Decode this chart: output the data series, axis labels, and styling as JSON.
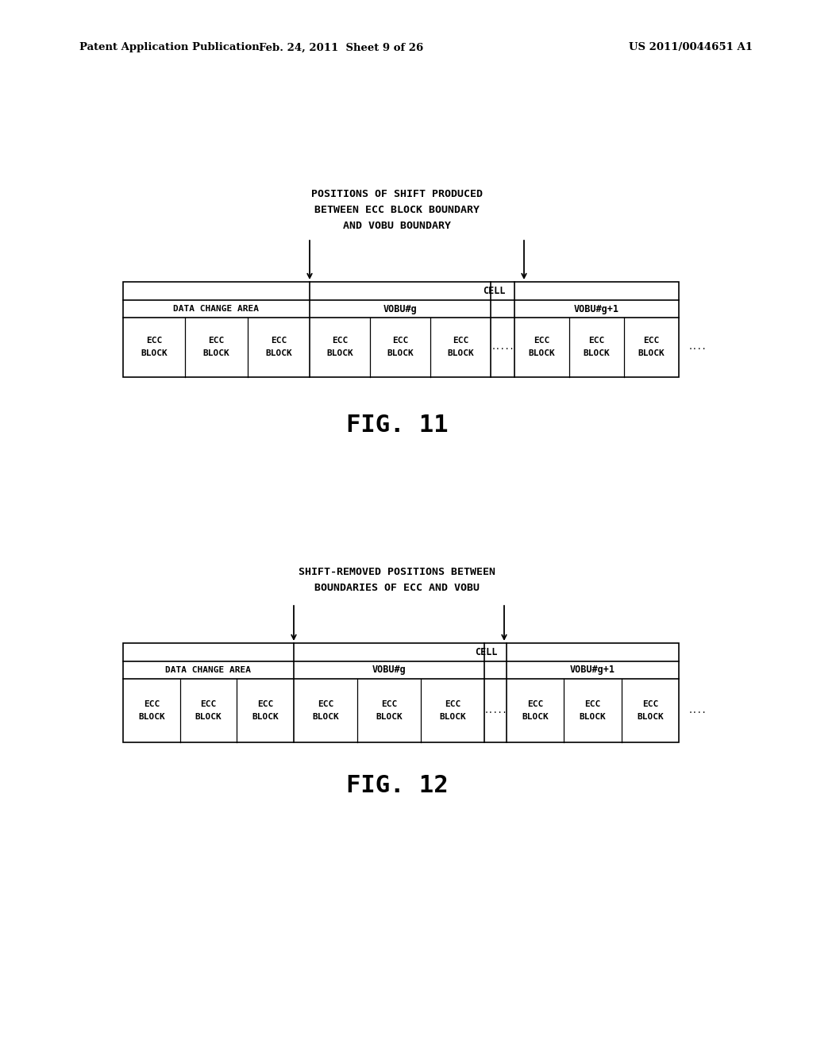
{
  "bg_color": "#ffffff",
  "text_color": "#000000",
  "header_left": "Patent Application Publication",
  "header_mid": "Feb. 24, 2011  Sheet 9 of 26",
  "header_right": "US 2011/0044651 A1",
  "fig11_title_line1": "POSITIONS OF SHIFT PRODUCED",
  "fig11_title_line2": "BETWEEN ECC BLOCK BOUNDARY",
  "fig11_title_line3": "AND VOBU BOUNDARY",
  "fig12_title_line1": "SHIFT-REMOVED POSITIONS BETWEEN",
  "fig12_title_line2": "BOUNDARIES OF ECC AND VOBU",
  "fig11_label": "FIG. 11",
  "fig12_label": "FIG. 12",
  "cell_label": "CELL",
  "dca_label": "DATA CHANGE AREA",
  "vobu_g_label": "VOBU#g",
  "vobu_gp1_label": "VOBU#g+1",
  "ecc_label": "ECC",
  "block_label": "BLOCK",
  "dots_mid": ".....",
  "dots_end": "....",
  "font_size_header": 9.5,
  "font_size_title": 9.5,
  "font_size_cell_label": 8.5,
  "font_size_vobu": 8.5,
  "font_size_ecc": 8,
  "font_size_fig_label": 22,
  "table_border_lw": 1.2,
  "inner_border_lw": 0.9
}
